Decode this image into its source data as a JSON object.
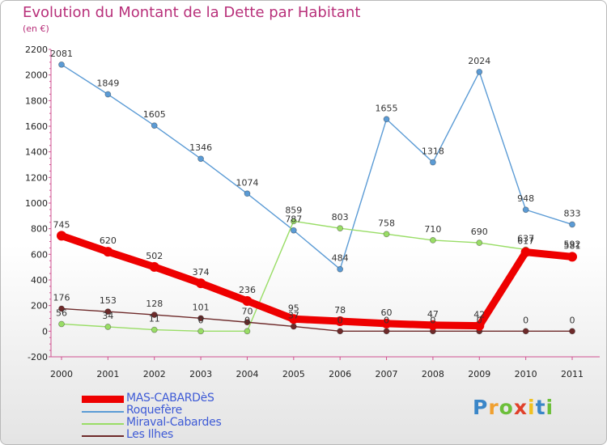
{
  "header": {
    "title": "Evolution du Montant de la Dette par Habitant",
    "subtitle": "(en €)"
  },
  "logo": {
    "text": "Proxiti",
    "colors": [
      "#3a86c8",
      "#f0a030",
      "#6cbf3a",
      "#e0402a",
      "#f0c020",
      "#3a86c8",
      "#6cbf3a"
    ]
  },
  "chart_data": {
    "type": "line",
    "x": [
      "2000",
      "2001",
      "2002",
      "2003",
      "2004",
      "2005",
      "2006",
      "2007",
      "2008",
      "2009",
      "2010",
      "2011"
    ],
    "yticks": [
      "2200",
      "2000",
      "1800",
      "1600",
      "1400",
      "1200",
      "1000",
      "800",
      "600",
      "400",
      "200",
      "0",
      "-200"
    ],
    "ylim": [
      -200,
      2200
    ],
    "grid": false,
    "legend_position": "bottom-left",
    "series": [
      {
        "name": "Roquefère",
        "color": "#5b9bd5",
        "values": [
          2081,
          1849,
          1605,
          1346,
          1074,
          787,
          484,
          1655,
          1318,
          2024,
          948,
          833
        ],
        "labels": [
          "2081",
          "1849",
          "1605",
          "1346",
          "1074",
          "787",
          "484",
          "1655",
          "1318",
          "2024",
          "948",
          "833"
        ]
      },
      {
        "name": "Miraval-Cabardes",
        "color": "#99dd66",
        "values": [
          56,
          34,
          11,
          0,
          0,
          859,
          803,
          758,
          710,
          690,
          637,
          592
        ],
        "labels": [
          "56",
          "34",
          "11",
          "0",
          "0",
          "859",
          "803",
          "758",
          "710",
          "690",
          "637",
          "592"
        ]
      },
      {
        "name": "Les Ilhes",
        "color": "#6e2a2a",
        "values": [
          176,
          153,
          128,
          101,
          70,
          37,
          0,
          0,
          0,
          0,
          0,
          0
        ],
        "labels": [
          "176",
          "153",
          "128",
          "101",
          "70",
          "37",
          "0",
          "0",
          "0",
          "0",
          "0",
          "0"
        ]
      },
      {
        "name": "MAS-CABARDèS",
        "color": "#ee0000",
        "values": [
          745,
          620,
          502,
          374,
          236,
          95,
          78,
          60,
          47,
          42,
          617,
          581
        ],
        "labels": [
          "745",
          "620",
          "502",
          "374",
          "236",
          "95",
          "78",
          "60",
          "47",
          "42",
          "617",
          "581"
        ]
      }
    ],
    "legend_order": [
      "MAS-CABARDèS",
      "Roquefère",
      "Miraval-Cabardes",
      "Les Ilhes"
    ]
  }
}
